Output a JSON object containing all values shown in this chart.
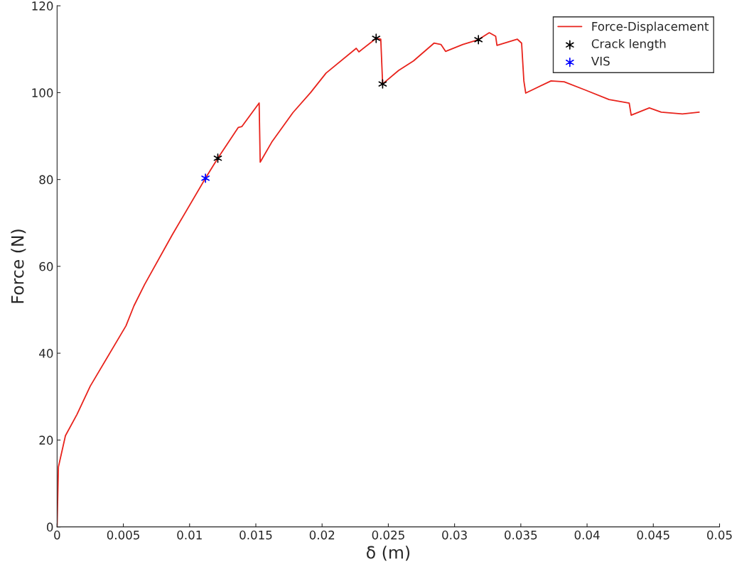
{
  "chart_data": {
    "type": "line",
    "xlabel": "δ (m)",
    "ylabel": "Force (N)",
    "xlim": [
      0,
      0.05
    ],
    "xticks": [
      0,
      0.005,
      0.01,
      0.015,
      0.02,
      0.025,
      0.03,
      0.035,
      0.04,
      0.045,
      0.05
    ],
    "ylim": [
      0,
      120
    ],
    "yticks": [
      0,
      20,
      40,
      60,
      80,
      100,
      120
    ],
    "grid": false,
    "legend": "top right",
    "series": [
      {
        "name": "Force-Displacement",
        "color": "#e8231c",
        "marker": "none",
        "line_style": "solid",
        "x": [
          0,
          0.0001,
          0.00063,
          0.0015,
          0.0025,
          0.0052,
          0.0058,
          0.0066,
          0.0087,
          0.0112,
          0.01213,
          0.01368,
          0.01395,
          0.01525,
          0.01533,
          0.0162,
          0.0178,
          0.01913,
          0.0203,
          0.02258,
          0.02278,
          0.02408,
          0.02443,
          0.02457,
          0.02577,
          0.0269,
          0.02845,
          0.02897,
          0.02932,
          0.03062,
          0.0318,
          0.03262,
          0.0331,
          0.0332,
          0.03474,
          0.03506,
          0.03523,
          0.03537,
          0.03728,
          0.03827,
          0.03987,
          0.04166,
          0.04318,
          0.04333,
          0.0447,
          0.0456,
          0.0472,
          0.04846
        ],
        "values": [
          0,
          13.8,
          21,
          25.9,
          32.4,
          46.3,
          50.9,
          55.8,
          67.3,
          80.3,
          84.9,
          92.0,
          92.2,
          97.6,
          84.0,
          88.6,
          95.4,
          100.0,
          104.5,
          110.2,
          109.4,
          112.5,
          112.3,
          102.0,
          105.1,
          107.3,
          111.4,
          111.1,
          109.5,
          111.1,
          112.2,
          113.8,
          113.0,
          110.9,
          112.3,
          111.4,
          102.7,
          99.9,
          102.7,
          102.5,
          100.6,
          98.4,
          97.6,
          94.8,
          96.5,
          95.5,
          95.1,
          95.5
        ]
      },
      {
        "name": "Crack length",
        "type": "scatter",
        "color": "#000000",
        "marker": "cross",
        "x": [
          0.01213,
          0.02408,
          0.02457,
          0.0318
        ],
        "values": [
          84.9,
          112.5,
          102.0,
          112.2
        ]
      },
      {
        "name": "VIS",
        "type": "scatter",
        "color": "#0000ff",
        "marker": "cross",
        "x": [
          0.0112
        ],
        "values": [
          80.3
        ]
      }
    ]
  }
}
